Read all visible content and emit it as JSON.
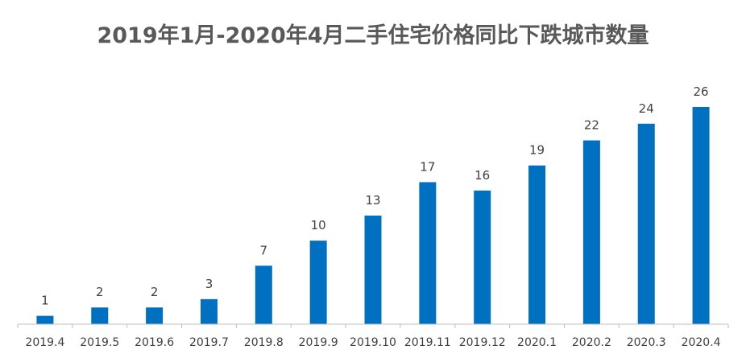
{
  "chart_data": {
    "type": "bar",
    "title": "2019年1月-2020年4月二手住宅价格同比下跌城市数量",
    "categories": [
      "2019.4",
      "2019.5",
      "2019.6",
      "2019.7",
      "2019.8",
      "2019.9",
      "2019.10",
      "2019.11",
      "2019.12",
      "2020.1",
      "2020.2",
      "2020.3",
      "2020.4"
    ],
    "values": [
      1,
      2,
      2,
      3,
      7,
      10,
      13,
      17,
      16,
      19,
      22,
      24,
      26
    ],
    "xlabel": "",
    "ylabel": "",
    "ylim": [
      0,
      30
    ],
    "grid": false,
    "legend": "none",
    "data_labels": true,
    "bar_color": "#0070C0",
    "axis_color": "#BFBFBF",
    "label_color": "#404040",
    "title_color": "#595959"
  }
}
